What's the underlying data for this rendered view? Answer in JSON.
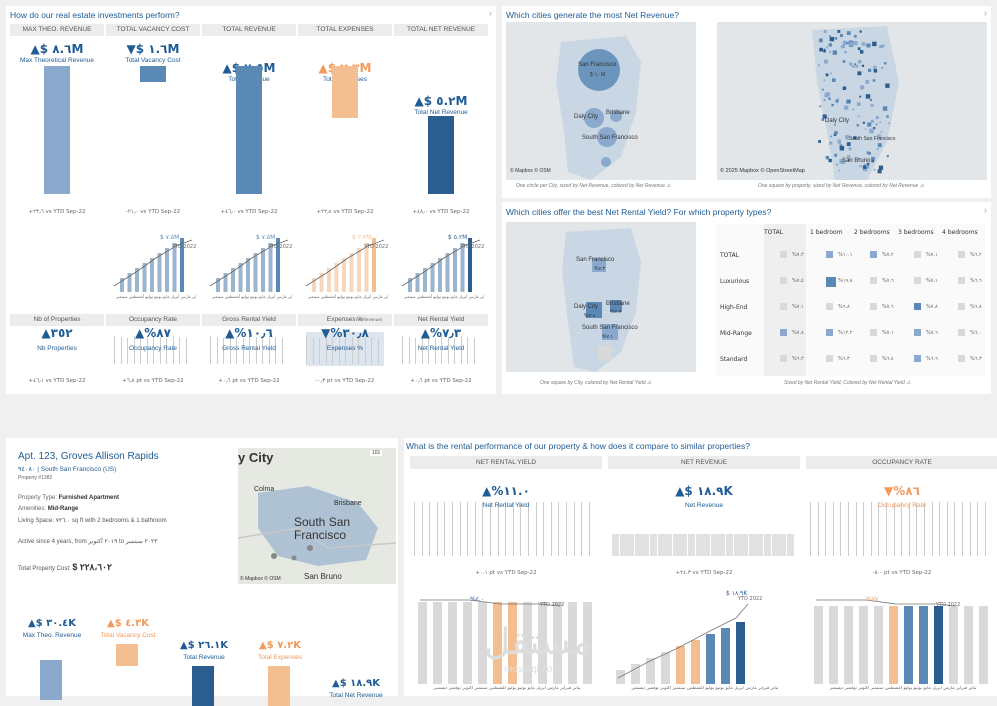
{
  "colors": {
    "blue": "#5b89b5",
    "lightblue": "#8aa9cc",
    "navy": "#2c5d8f",
    "orange": "#f4be93",
    "grey": "#d9d9d9",
    "title": "#1f5c94"
  },
  "perf": {
    "title": "How do our real estate investments perform?",
    "headers": [
      "MAX THEO. REVENUE",
      "TOTAL VACANCY COST",
      "TOTAL REVENUE",
      "TOTAL EXPENSES",
      "TOTAL NET REVENUE"
    ],
    "values": [
      "▲$ ٨.٦M",
      "▼$ ١.٦M",
      "▲$ ٧.٥M",
      "▲$ ٢.٣M",
      "▲$ ٥.٢M"
    ],
    "labels": [
      "Max Theoretical Revenue",
      "Total Vacancy Cost",
      "Total Revenue",
      "Total Expenses",
      "Total Net Revenue"
    ],
    "ytd": [
      "+٢٣٫٦ vs YTD Sep-22",
      "-٢١٫٠ vs YTD Sep-22",
      "+٤٦٫٠ vs YTD Sep-22",
      "+٢٢٫٤ vs YTD Sep-22",
      "+٤٨٫٠ vs YTD Sep-22"
    ],
    "spark_tags": [
      "$ ٧.٥M",
      "$ ٧.٥M",
      "$ ٢.٣M",
      "$ ٥.٢M"
    ],
    "spark_ytd": [
      "YTD 2022",
      "YTD 2022",
      "YTD 2022",
      "YTD 2022"
    ],
    "spark_axis": "يناير فبراير مارس أبريل مايو يونيو يوليو أغسطس سبتمبر",
    "kpi_headers": [
      "Nb of Properties",
      "Occupancy Rate",
      "Gross Rental Yield",
      "Expenses %",
      "Net Rental Yield"
    ],
    "expenses_note": "(vs Revenue)",
    "kpi_values": [
      "▲٣٥٢",
      "▲%٨٧",
      "▲%١٠٫٦",
      "▼%٣٠٫٨",
      "▲%٧٫٣"
    ],
    "kpi_labels": [
      "Nb Properties",
      "Occupancy Rate",
      "Gross Rental Yield",
      "Expenses %",
      "Net Rental Yield"
    ],
    "kpi_ytd": [
      "+٤٦٫١ vs YTD Sep-22",
      "+٦٫٨ pt vs YTD Sep-22",
      "+٠٫٦ pt vs YTD Sep-22",
      "-٠٫٣ pt vs YTD Sep-22",
      "+٠٫٦ pt vs YTD Sep-22"
    ]
  },
  "cities": {
    "title": "Which cities generate the most Net Revenue?",
    "map1_labels": [
      "San Francisco",
      "$ ٦.٠M",
      "Daly City",
      "Brisbane",
      "South San Francisco"
    ],
    "map2_labels": [
      "Daly City",
      "South San Francisco",
      "San Bruno"
    ],
    "credit1": "© Mapbox  © OSM",
    "credit2": "© 2025 Mapbox  © OpenStreetMap",
    "caption1": "One circle per City, sized by Net Revenue, colored by Net Revenue ⚠",
    "caption2": "One square by property, sized by Net Revenue, colored by Net Revenue ⚠"
  },
  "yield": {
    "title": "Which cities offer the best Net Rental Yield? For which property types?",
    "map_labels": [
      "San Francisco",
      "Daly City",
      "Brisbane",
      "South San Francisco"
    ],
    "map_values": [
      "%٧.٣",
      "%٧.٨",
      "%٧.٧",
      "%٧.١"
    ],
    "caption1": "One square by City, colored by Net Rental Yield ⚠",
    "caption2": "Sized by Net Rental Yield, Colored by Net Rental Yield ⚠",
    "cols": [
      "TOTAL",
      "1 bedroom",
      "2 bedrooms",
      "3 bedrooms",
      "4 bedrooms"
    ],
    "rows": [
      "TOTAL",
      "Luxurious",
      "High-End",
      "Mid-Range",
      "Standard"
    ],
    "cells": [
      [
        "%٧.٣",
        "%١٠.١",
        "%٧.٢",
        "%٧.١",
        "%٦.٢"
      ],
      [
        "%٧.٥",
        "%١٩.٨",
        "%٧.٦",
        "%٧.١",
        "%٦.٦"
      ],
      [
        "%٧.١",
        "%٦.٨",
        "%٧.٦",
        "%٧.٨",
        "%٦.٨"
      ],
      [
        "%٧.٨",
        "%١٢.٢",
        "%٧.١",
        "%٧.٦",
        "%٦.٠"
      ],
      [
        "%٦.٣",
        "%٦.٣",
        "%٦.٤",
        "%٦.٦",
        "%٦.٣"
      ]
    ]
  },
  "property": {
    "title": "Apt. 123,  Groves Allison Rapids",
    "zip": "٩٤٠٨٠ | South San Francisco (US)",
    "id": "Property #1382",
    "type_label": "Property Type: ",
    "type_value": "Furnished Apartment",
    "amen_label": "Amenities: ",
    "amen_value": "Mid-Range",
    "space": "Living Space: ٧٢٦.٠ sq ft with 2 bedrooms & 1 bathroom",
    "since": "Active since 4 years, from ٢٠١٩ أكتوبر to ٢٠٢٣ سبتمبر",
    "cost_label": "Total Property Cost: ",
    "cost_value": "$ ٢٢٨،٦٠٢",
    "map_city": "y City",
    "map_place": "South San\nFrancisco",
    "map_labels": [
      "Colma",
      "Brisbane",
      "San Bruno"
    ],
    "road": "101",
    "credit": "© Mapbox  © OSM",
    "values": [
      "▲$ ٣٠.٤K",
      "▲$ ٤.٣K",
      "▲$ ٢٦.١K",
      "▲$ ٧.٢K",
      "▲$ ١٨.٩K"
    ],
    "labels": [
      "Max Theo. Revenue",
      "Total Vacancy Cost",
      "Total Revenue",
      "Total Expenses",
      "Total Net Revenue"
    ]
  },
  "rental": {
    "title": "What is the rental performance of our property & how does it compare to similar properties?",
    "headers": [
      "NET RENTAL YIELD",
      "NET REVENUE",
      "OCCUPANCY RATE"
    ],
    "values": [
      "▲%١١.٠",
      "▲$ ١٨.٩K",
      "▼%٨٦"
    ],
    "labels": [
      "Net Rental Yield",
      "Net Revenue",
      "Occupancy Rate"
    ],
    "ytd": [
      "+٠.١ pt vs YTD Sep-22",
      "+٢٤.٣ vs YTD Sep-22",
      "-٥.٠ pt vs YTD Sep-22"
    ],
    "spark_tags": [
      "%٤.٠",
      "$ ١٨.٩K",
      "%٧٧"
    ],
    "spark_ytd": [
      "YTD 2022",
      "YTD 2022",
      "YTD 2022"
    ],
    "axis": "يناير فبراير مارس أبريل مايو يونيو يوليو أغسطس سبتمبر أكتوبر نوفمبر ديسمبر"
  },
  "watermark": {
    "ar": "مستقل",
    "en": "mostaql.com"
  }
}
